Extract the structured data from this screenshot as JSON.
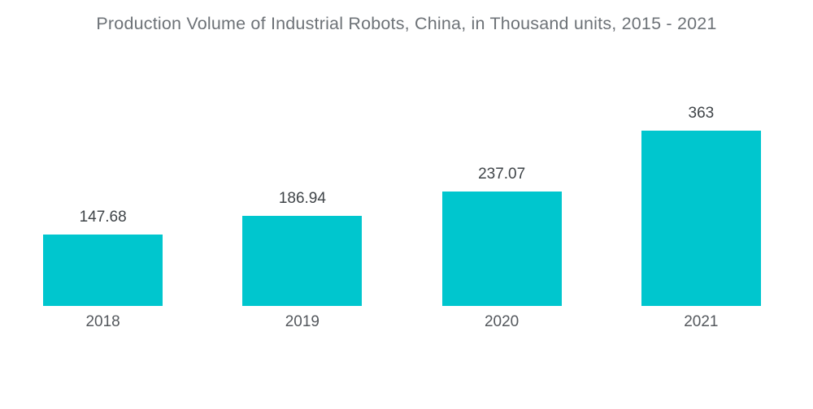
{
  "title": "Production Volume of Industrial Robots, China, in Thousand units, 2015 - 2021",
  "chart_data": {
    "type": "bar",
    "categories": [
      "2018",
      "2019",
      "2020",
      "2021"
    ],
    "values": [
      147.68,
      186.94,
      237.07,
      363
    ],
    "value_labels": [
      "147.68",
      "186.94",
      "237.07",
      "363"
    ],
    "title": "Production Volume of Industrial Robots, China, in Thousand units, 2015 - 2021",
    "xlabel": "",
    "ylabel": "",
    "ylim": [
      0,
      400
    ],
    "grid": false,
    "legend": false,
    "bar_color": "#00C6CE"
  },
  "colors": {
    "bar": "#00C6CE",
    "title_text": "#6D7277",
    "value_label": "#3F4448",
    "axis_label": "#54585D",
    "background": "#FFFFFF"
  }
}
